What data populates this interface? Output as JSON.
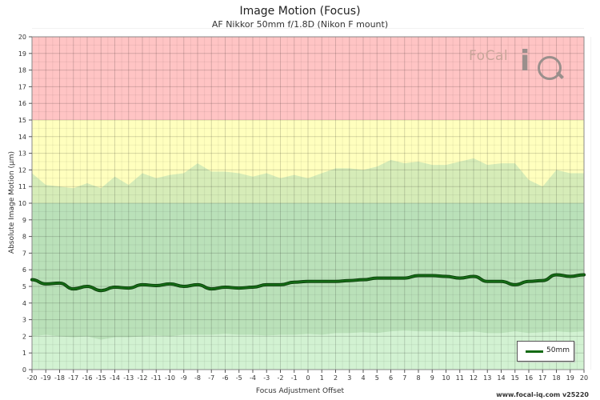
{
  "title": "Image Motion (Focus)",
  "subtitle": "AF Nikkor 50mm f/1.8D (Nikon F mount)",
  "credit": "www.focal-iq.com  v25220",
  "logo_text": "FoCal iQ",
  "colors": {
    "red_zone": "#ffc4c4",
    "yellow_zone": "#ffffbe",
    "green_zone": "#c0e6c0",
    "green_light": "#d2f2d2",
    "envelope": "#b5dcb2",
    "series": "#146a14"
  },
  "chart_data": {
    "type": "line",
    "title": "Image Motion (Focus)",
    "subtitle": "AF Nikkor 50mm f/1.8D (Nikon F mount)",
    "xlabel": "Focus Adjustment Offset",
    "ylabel": "Absolute Image Motion (µm)",
    "xlim": [
      -20,
      20
    ],
    "ylim": [
      0,
      20
    ],
    "grid": true,
    "legend_position": "bottom-right",
    "x_ticks": [
      "-20",
      "-19",
      "-18",
      "-17",
      "-16",
      "-15",
      "-14",
      "-13",
      "-12",
      "-11",
      "-10",
      "-9",
      "-8",
      "-7",
      "-6",
      "-5",
      "-4",
      "-3",
      "-2",
      "-1",
      "0",
      "1",
      "2",
      "3",
      "4",
      "5",
      "6",
      "7",
      "8",
      "9",
      "10",
      "11",
      "12",
      "13",
      "14",
      "15",
      "16",
      "17",
      "18",
      "19",
      "20"
    ],
    "y_ticks": [
      "0",
      "1",
      "2",
      "3",
      "4",
      "5",
      "6",
      "7",
      "8",
      "9",
      "10",
      "11",
      "12",
      "13",
      "14",
      "15",
      "16",
      "17",
      "18",
      "19",
      "20"
    ],
    "zones": [
      {
        "from": 15,
        "to": 20,
        "color": "red"
      },
      {
        "from": 10,
        "to": 15,
        "color": "yellow"
      },
      {
        "from": 0,
        "to": 10,
        "color": "green"
      }
    ],
    "series": [
      {
        "name": "50mm",
        "x": [
          -20,
          -19,
          -18,
          -17,
          -16,
          -15,
          -14,
          -13,
          -12,
          -11,
          -10,
          -9,
          -8,
          -7,
          -6,
          -5,
          -4,
          -3,
          -2,
          -1,
          0,
          1,
          2,
          3,
          4,
          5,
          6,
          7,
          8,
          9,
          10,
          11,
          12,
          13,
          14,
          15,
          16,
          17,
          18,
          19,
          20
        ],
        "values": [
          5.4,
          5.15,
          5.2,
          4.85,
          5.0,
          4.75,
          4.95,
          4.9,
          5.1,
          5.05,
          5.15,
          5.0,
          5.1,
          4.85,
          4.95,
          4.9,
          4.95,
          5.1,
          5.1,
          5.25,
          5.3,
          5.3,
          5.3,
          5.35,
          5.4,
          5.5,
          5.5,
          5.5,
          5.65,
          5.65,
          5.6,
          5.5,
          5.6,
          5.3,
          5.3,
          5.1,
          5.3,
          5.35,
          5.7,
          5.6,
          5.7
        ],
        "upper": [
          11.8,
          11.1,
          11.0,
          10.9,
          11.2,
          10.9,
          11.6,
          11.1,
          11.8,
          11.5,
          11.7,
          11.8,
          12.4,
          11.9,
          11.9,
          11.8,
          11.6,
          11.8,
          11.5,
          11.7,
          11.5,
          11.8,
          12.1,
          12.1,
          12.0,
          12.2,
          12.6,
          12.4,
          12.5,
          12.3,
          12.3,
          12.5,
          12.7,
          12.3,
          12.4,
          12.4,
          11.4,
          11.0,
          12.0,
          11.8,
          11.8
        ],
        "lower": [
          2.0,
          2.1,
          2.0,
          1.95,
          2.0,
          1.8,
          1.95,
          1.95,
          2.0,
          2.05,
          2.0,
          2.1,
          2.1,
          2.1,
          2.15,
          2.1,
          2.1,
          2.05,
          2.1,
          2.1,
          2.15,
          2.1,
          2.2,
          2.2,
          2.25,
          2.2,
          2.3,
          2.35,
          2.3,
          2.3,
          2.3,
          2.25,
          2.3,
          2.2,
          2.2,
          2.3,
          2.2,
          2.25,
          2.3,
          2.25,
          2.3
        ]
      }
    ]
  }
}
